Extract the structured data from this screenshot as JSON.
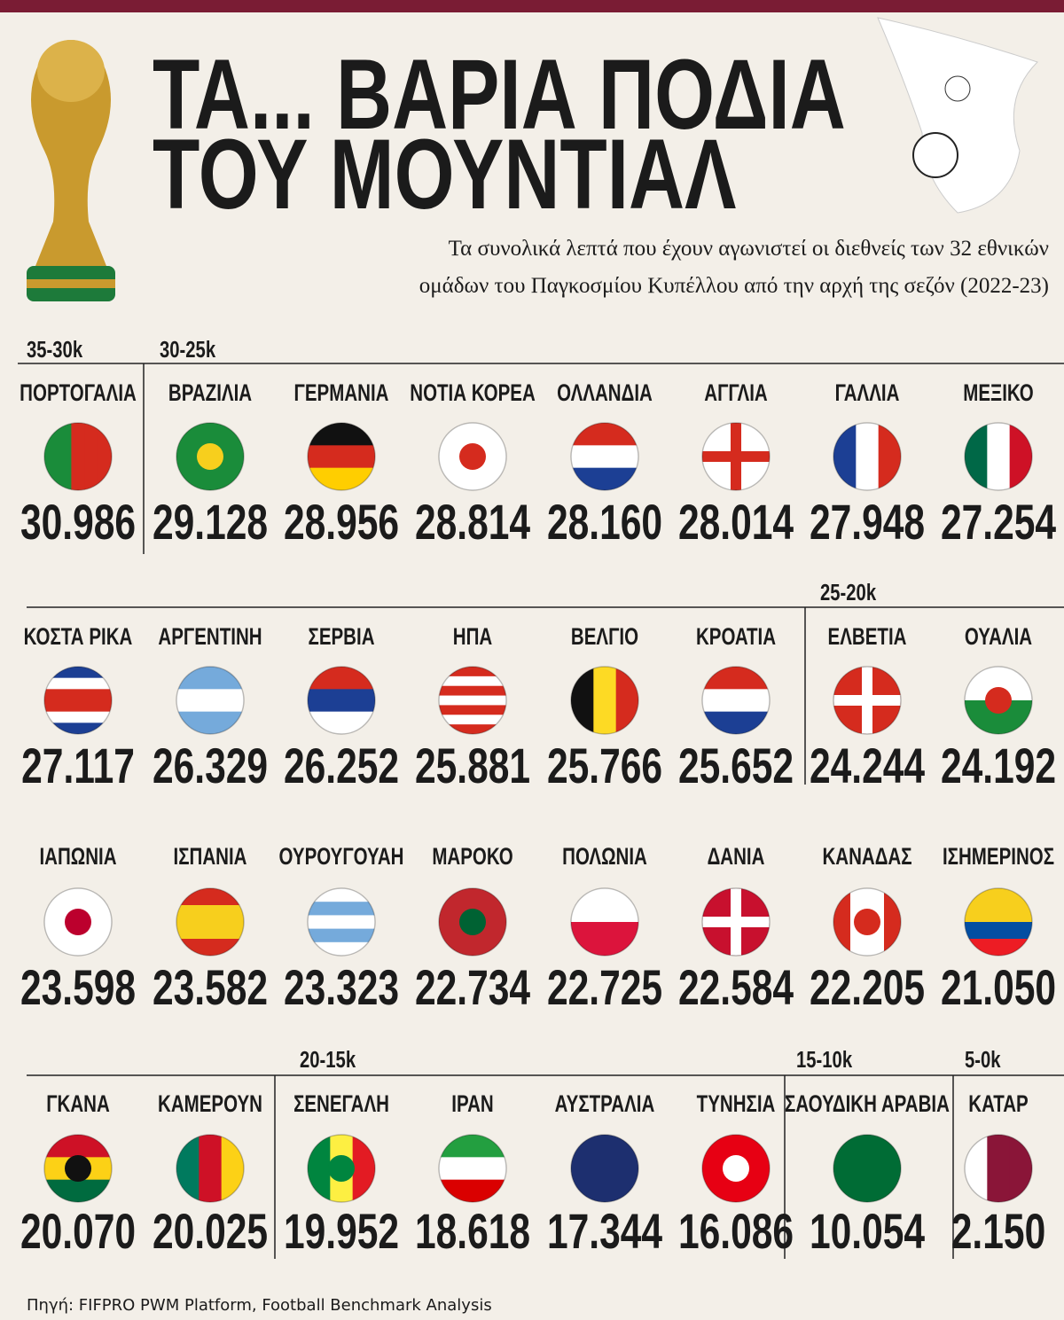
{
  "header": {
    "title_lines": [
      "ΤΑ... ΒΑΡΙΑ ΠΟΔΙΑ",
      "ΤΟΥ ΜΟΥΝΤΙΑΛ"
    ],
    "subtitle_lines": [
      "Τα συνολικά λεπτά που έχουν αγωνιστεί οι διεθνείς των 32 εθνικών",
      "ομάδων του Παγκοσμίου Κυπέλλου από την αρχή της σεζόν (2022-23)"
    ]
  },
  "groups": [
    "35-30k",
    "30-25k",
    "25-20k",
    "20-15k",
    "15-10k",
    "5-0k"
  ],
  "teams": [
    {
      "name": "ΠΟΡΤΟΓΑΛΙΑ",
      "minutes": "30.986"
    },
    {
      "name": "ΒΡΑΖΙΛΙΑ",
      "minutes": "29.128"
    },
    {
      "name": "ΓΕΡΜΑΝΙΑ",
      "minutes": "28.956"
    },
    {
      "name": "ΝΟΤΙΑ ΚΟΡΕΑ",
      "minutes": "28.814"
    },
    {
      "name": "ΟΛΛΑΝΔΙΑ",
      "minutes": "28.160"
    },
    {
      "name": "ΑΓΓΛΙΑ",
      "minutes": "28.014"
    },
    {
      "name": "ΓΑΛΛΙΑ",
      "minutes": "27.948"
    },
    {
      "name": "ΜΕΞΙΚΟ",
      "minutes": "27.254"
    },
    {
      "name": "ΚΟΣΤΑ ΡΙΚΑ",
      "minutes": "27.117"
    },
    {
      "name": "ΑΡΓΕΝΤΙΝΗ",
      "minutes": "26.329"
    },
    {
      "name": "ΣΕΡΒΙΑ",
      "minutes": "26.252"
    },
    {
      "name": "ΗΠΑ",
      "minutes": "25.881"
    },
    {
      "name": "ΒΕΛΓΙΟ",
      "minutes": "25.766"
    },
    {
      "name": "ΚΡΟΑΤΙΑ",
      "minutes": "25.652"
    },
    {
      "name": "ΕΛΒΕΤΙΑ",
      "minutes": "24.244"
    },
    {
      "name": "ΟΥΑΛΙΑ",
      "minutes": "24.192"
    },
    {
      "name": "ΙΑΠΩΝΙΑ",
      "minutes": "23.598"
    },
    {
      "name": "ΙΣΠΑΝΙΑ",
      "minutes": "23.582"
    },
    {
      "name": "ΟΥΡΟΥΓΟΥΑΗ",
      "minutes": "23.323"
    },
    {
      "name": "ΜΑΡΟΚΟ",
      "minutes": "22.734"
    },
    {
      "name": "ΠΟΛΩΝΙΑ",
      "minutes": "22.725"
    },
    {
      "name": "ΔΑΝΙΑ",
      "minutes": "22.584"
    },
    {
      "name": "ΚΑΝΑΔΑΣ",
      "minutes": "22.205"
    },
    {
      "name": "ΙΣΗΜΕΡΙΝΟΣ",
      "minutes": "21.050"
    },
    {
      "name": "ΓΚΑΝΑ",
      "minutes": "20.070"
    },
    {
      "name": "ΚΑΜΕΡΟΥΝ",
      "minutes": "20.025"
    },
    {
      "name": "ΣΕΝΕΓΑΛΗ",
      "minutes": "19.952"
    },
    {
      "name": "ΙΡΑΝ",
      "minutes": "18.618"
    },
    {
      "name": "ΑΥΣΤΡΑΛΙΑ",
      "minutes": "17.344"
    },
    {
      "name": "ΤΥΝΗΣΙΑ",
      "minutes": "16.086"
    },
    {
      "name": "ΣΑΟΥΔΙΚΗ ΑΡΑΒΙΑ",
      "minutes": "10.054"
    },
    {
      "name": "ΚΑΤΑΡ",
      "minutes": "2.150"
    }
  ],
  "source": "Πηγή: FIFPRO PWM Platform, Football Benchmark Analysis"
}
